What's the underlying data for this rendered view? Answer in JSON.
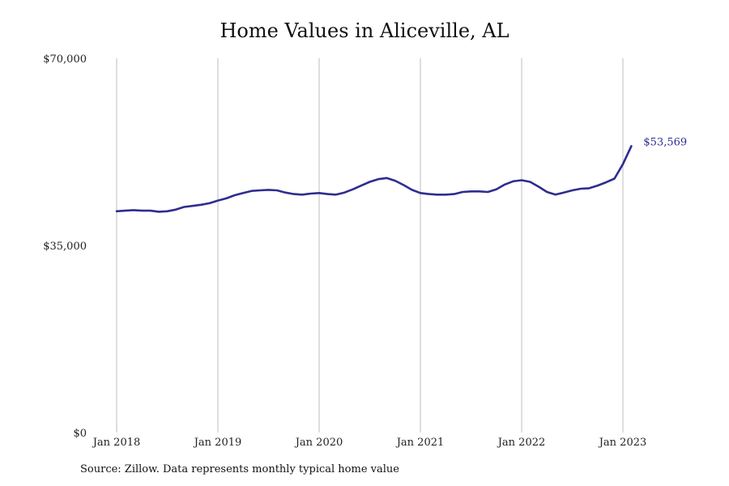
{
  "chart_data": {
    "type": "line",
    "title": "Home Values in Aliceville, AL",
    "xlabel": "",
    "ylabel": "",
    "ylim": [
      0,
      70000
    ],
    "y_ticks": [
      {
        "value": 0,
        "label": "$0"
      },
      {
        "value": 35000,
        "label": "$35,000"
      },
      {
        "value": 70000,
        "label": "$70,000"
      }
    ],
    "x_ticks": [
      "Jan 2018",
      "Jan 2019",
      "Jan 2020",
      "Jan 2021",
      "Jan 2022",
      "Jan 2023"
    ],
    "grid": "vertical",
    "series_color": "#2e2d8f",
    "end_label": "$53,569",
    "series": [
      {
        "x": [
          "2018-01",
          "2018-02",
          "2018-03",
          "2018-04",
          "2018-05",
          "2018-06",
          "2018-07",
          "2018-08",
          "2018-09",
          "2018-10",
          "2018-11",
          "2018-12",
          "2019-01",
          "2019-02",
          "2019-03",
          "2019-04",
          "2019-05",
          "2019-06",
          "2019-07",
          "2019-08",
          "2019-09",
          "2019-10",
          "2019-11",
          "2019-12",
          "2020-01",
          "2020-02",
          "2020-03",
          "2020-04",
          "2020-05",
          "2020-06",
          "2020-07",
          "2020-08",
          "2020-09",
          "2020-10",
          "2020-11",
          "2020-12",
          "2021-01",
          "2021-02",
          "2021-03",
          "2021-04",
          "2021-05",
          "2021-06",
          "2021-07",
          "2021-08",
          "2021-09",
          "2021-10",
          "2021-11",
          "2021-12",
          "2022-01",
          "2022-02",
          "2022-03",
          "2022-04",
          "2022-05",
          "2022-06",
          "2022-07",
          "2022-08",
          "2022-09",
          "2022-10",
          "2022-11",
          "2022-12",
          "2023-01",
          "2023-02"
        ],
        "values": [
          41400,
          41500,
          41600,
          41500,
          41500,
          41300,
          41400,
          41700,
          42200,
          42400,
          42600,
          42900,
          43400,
          43800,
          44400,
          44800,
          45200,
          45300,
          45400,
          45300,
          44900,
          44600,
          44500,
          44700,
          44800,
          44600,
          44500,
          44900,
          45500,
          46200,
          46900,
          47400,
          47600,
          47100,
          46300,
          45400,
          44800,
          44600,
          44500,
          44500,
          44600,
          45000,
          45100,
          45100,
          45000,
          45500,
          46400,
          47000,
          47200,
          46900,
          46000,
          45000,
          44500,
          44900,
          45300,
          45600,
          45700,
          46200,
          46800,
          47500,
          50200,
          53569
        ]
      }
    ]
  },
  "source": "Source: Zillow. Data represents monthly typical home value"
}
